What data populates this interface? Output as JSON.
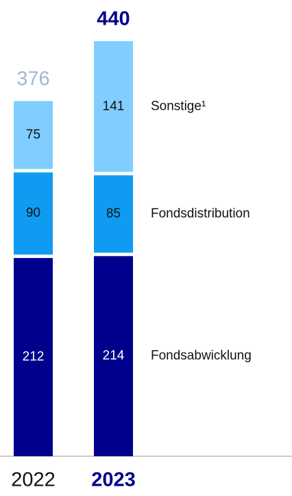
{
  "chart_data": {
    "type": "stacked_bar",
    "categories": [
      "2022",
      "2023"
    ],
    "totals": [
      376,
      440
    ],
    "series": [
      {
        "name": "Fondsabwicklung",
        "color": "#00008c",
        "values": [
          212,
          214
        ]
      },
      {
        "name": "Fondsdistribution",
        "color": "#0f9bf2",
        "values": [
          90,
          85
        ]
      },
      {
        "name": "Sonstige¹",
        "color": "#80cdff",
        "values": [
          75,
          141
        ]
      }
    ]
  }
}
